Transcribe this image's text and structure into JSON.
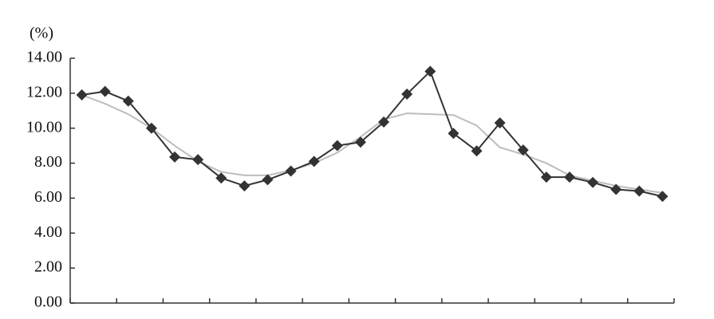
{
  "chart_data": {
    "type": "line",
    "y_label": "(%)",
    "categories": [
      null,
      null,
      null,
      null,
      null,
      null,
      null,
      null,
      null,
      null,
      null,
      null,
      null,
      null,
      null,
      null,
      null,
      null,
      null,
      null,
      null,
      null,
      null,
      null,
      null,
      null
    ],
    "series": [
      {
        "color": "#bdbdbd",
        "marker": false,
        "values": [
          11.9,
          11.4,
          10.8,
          10.0,
          9.0,
          8.1,
          7.5,
          7.3,
          7.3,
          7.6,
          8.0,
          8.6,
          9.5,
          10.5,
          10.85,
          10.8,
          10.75,
          10.15,
          8.9,
          8.5,
          8.0,
          7.3,
          7.0,
          6.7,
          6.5,
          6.3
        ]
      },
      {
        "color": "#333333",
        "marker": true,
        "values": [
          11.9,
          12.1,
          11.55,
          10.0,
          8.35,
          8.2,
          7.15,
          6.7,
          7.05,
          7.55,
          8.1,
          9.0,
          9.2,
          10.35,
          11.95,
          13.25,
          9.7,
          8.7,
          10.3,
          8.75,
          7.2,
          7.2,
          6.9,
          6.5,
          6.4,
          6.1
        ]
      }
    ],
    "ylim": [
      0,
      14
    ],
    "yticks": [
      {
        "value": 0,
        "label": "0.00"
      },
      {
        "value": 2,
        "label": "2.00"
      },
      {
        "value": 4,
        "label": "4.00"
      },
      {
        "value": 6,
        "label": "6.00"
      },
      {
        "value": 8,
        "label": "8.00"
      },
      {
        "value": 10,
        "label": "10.00"
      },
      {
        "value": 12,
        "label": "12.00"
      },
      {
        "value": 14,
        "label": "14.00"
      }
    ],
    "grid": false
  }
}
